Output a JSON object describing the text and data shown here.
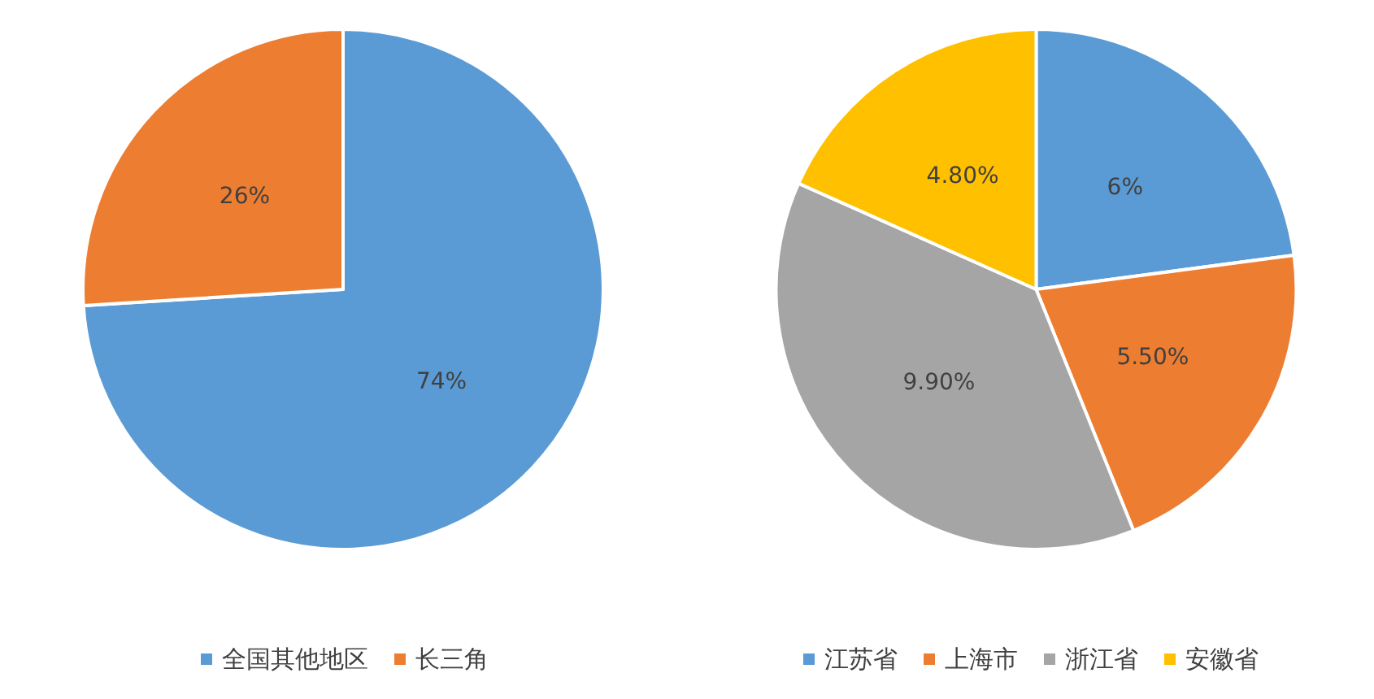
{
  "chart_data": [
    {
      "type": "pie",
      "categories": [
        "全国其他地区",
        "长三角"
      ],
      "values": [
        74,
        26
      ],
      "value_labels": [
        "74%",
        "26%"
      ],
      "colors": [
        "#5b9bd5",
        "#ed7d31"
      ],
      "legend": "bottom"
    },
    {
      "type": "pie",
      "categories": [
        "江苏省",
        "上海市",
        "浙江省",
        "安徽省"
      ],
      "values": [
        6,
        5.5,
        9.9,
        4.8
      ],
      "value_labels": [
        "6%",
        "5.50%",
        "9.90%",
        "4.80%"
      ],
      "colors": [
        "#5b9bd5",
        "#ed7d31",
        "#a5a5a5",
        "#ffc000"
      ],
      "legend": "bottom"
    }
  ]
}
